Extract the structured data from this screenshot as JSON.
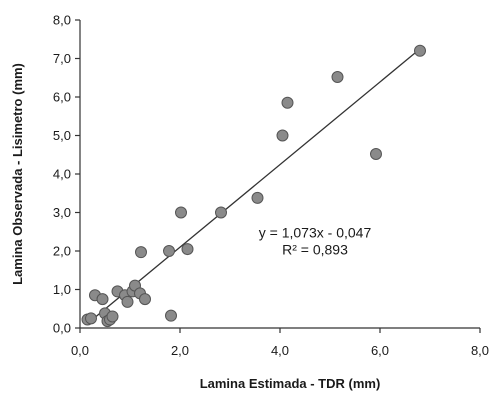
{
  "chart_data": {
    "type": "scatter",
    "xlabel": "Lamina Estimada - TDR (mm)",
    "ylabel": "Lamina Observada - Lisimetro (mm)",
    "xlim": [
      0,
      8
    ],
    "ylim": [
      0,
      8
    ],
    "x_ticks": [
      "0,0",
      "2,0",
      "4,0",
      "6,0",
      "8,0"
    ],
    "y_ticks": [
      "0,0",
      "1,0",
      "2,0",
      "3,0",
      "4,0",
      "5,0",
      "6,0",
      "7,0",
      "8,0"
    ],
    "grid": false,
    "points": [
      {
        "x": 0.15,
        "y": 0.22
      },
      {
        "x": 0.22,
        "y": 0.25
      },
      {
        "x": 0.3,
        "y": 0.85
      },
      {
        "x": 0.45,
        "y": 0.75
      },
      {
        "x": 0.5,
        "y": 0.38
      },
      {
        "x": 0.55,
        "y": 0.18
      },
      {
        "x": 0.6,
        "y": 0.22
      },
      {
        "x": 0.65,
        "y": 0.3
      },
      {
        "x": 0.75,
        "y": 0.95
      },
      {
        "x": 0.9,
        "y": 0.85
      },
      {
        "x": 0.95,
        "y": 0.68
      },
      {
        "x": 1.05,
        "y": 0.95
      },
      {
        "x": 1.1,
        "y": 1.1
      },
      {
        "x": 1.2,
        "y": 0.9
      },
      {
        "x": 1.22,
        "y": 1.97
      },
      {
        "x": 1.3,
        "y": 0.75
      },
      {
        "x": 1.78,
        "y": 2.0
      },
      {
        "x": 1.82,
        "y": 0.32
      },
      {
        "x": 2.02,
        "y": 3.0
      },
      {
        "x": 2.15,
        "y": 2.05
      },
      {
        "x": 2.82,
        "y": 3.0
      },
      {
        "x": 3.55,
        "y": 3.38
      },
      {
        "x": 4.05,
        "y": 5.0
      },
      {
        "x": 4.15,
        "y": 5.85
      },
      {
        "x": 5.15,
        "y": 6.52
      },
      {
        "x": 5.92,
        "y": 4.52
      },
      {
        "x": 6.8,
        "y": 7.2
      }
    ],
    "trendline": {
      "slope": 1.073,
      "intercept": -0.047,
      "x_range": [
        0.2,
        6.8
      ]
    },
    "annotation": {
      "equation": "y = 1,073x - 0,047",
      "r2": "R² = 0,893",
      "x": 4.7,
      "y": 2.2
    },
    "colors": {
      "marker": "#8a8a8a",
      "marker_edge": "#555555",
      "line": "#333333"
    }
  }
}
